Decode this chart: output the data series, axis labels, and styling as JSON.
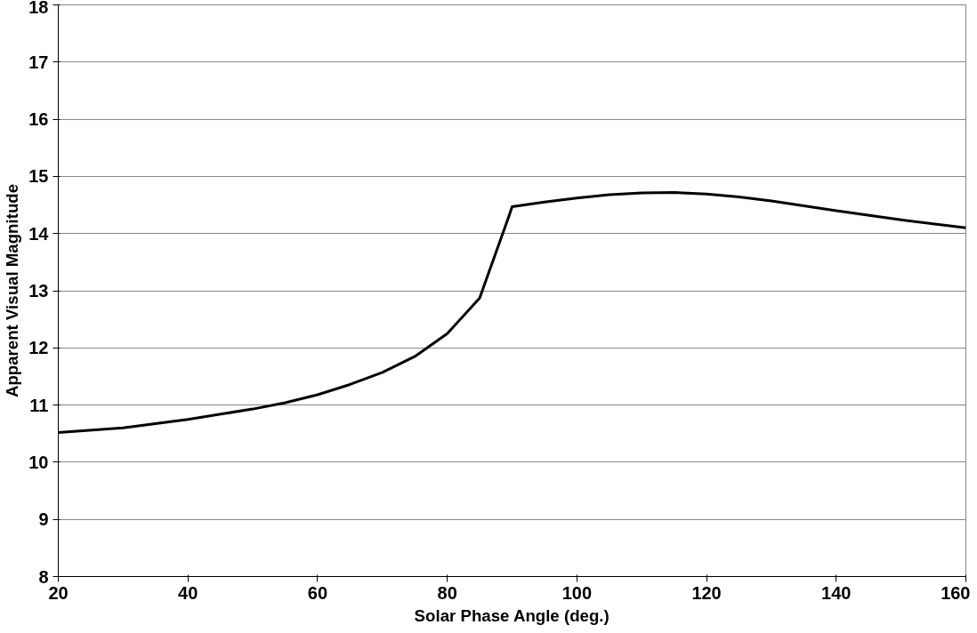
{
  "chart_data": {
    "type": "line",
    "xlabel": "Solar Phase Angle (deg.)",
    "ylabel": "Apparent Visual Magnitude",
    "x": [
      20,
      30,
      40,
      50,
      55,
      60,
      65,
      70,
      75,
      80,
      85,
      89.5,
      90,
      95,
      100,
      105,
      110,
      115,
      120,
      125,
      130,
      140,
      150,
      160
    ],
    "series": [
      {
        "color": "#000000",
        "values": [
          10.52,
          10.6,
          10.75,
          10.93,
          11.04,
          11.18,
          11.36,
          11.57,
          11.85,
          12.25,
          12.87,
          14.3,
          14.47,
          14.55,
          14.62,
          14.68,
          14.71,
          14.72,
          14.69,
          14.64,
          14.57,
          14.4,
          14.24,
          14.1
        ]
      }
    ],
    "xlim": [
      20,
      160
    ],
    "ylim": [
      8,
      18
    ],
    "xticks": [
      20,
      40,
      60,
      80,
      100,
      120,
      140,
      160
    ],
    "yticks": [
      8,
      9,
      10,
      11,
      12,
      13,
      14,
      15,
      16,
      17,
      18
    ],
    "grid": "y",
    "line_style": "solid",
    "marker": "none"
  }
}
